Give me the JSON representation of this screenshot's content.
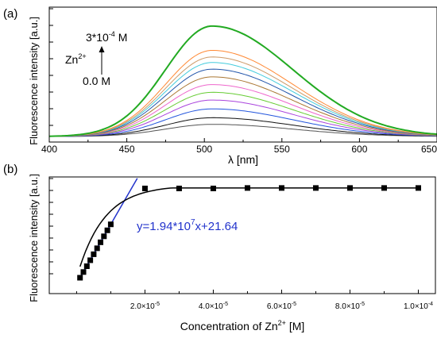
{
  "chart_data": [
    {
      "panel_label": "(a)",
      "type": "line",
      "xlabel": "λ [nm]",
      "ylabel": "Fluorescence intensity [a.u.]",
      "xlim": [
        400,
        650
      ],
      "x_ticks": [
        "400",
        "450",
        "500",
        "550",
        "600",
        "650"
      ],
      "annotations": {
        "top": "3*10",
        "top_exp": "-4",
        "top_unit": " M",
        "middle_base": "Zn",
        "middle_sup": "2+",
        "bottom": "0.0 M"
      },
      "peak_nm": 505,
      "sigma_left_nm": 30,
      "sigma_right_nm": 52,
      "baseline_relative": [
        0.0,
        0.09,
        0.16,
        0.23,
        0.3,
        0.36,
        0.42,
        0.48,
        0.54,
        0.6,
        0.66,
        1.0
      ],
      "series_colors": [
        "#555555",
        "#111111",
        "#2255dd",
        "#aa44dd",
        "#66cc33",
        "#ee66cc",
        "#aa7733",
        "#2255aa",
        "#44ccdd",
        "#cc9966",
        "#ff8833",
        "#22aa22"
      ],
      "curve_peak_relative": [
        0.11,
        0.17,
        0.25,
        0.33,
        0.4,
        0.47,
        0.54,
        0.61,
        0.67,
        0.72,
        0.78,
        1.0
      ]
    },
    {
      "panel_label": "(b)",
      "type": "scatter",
      "xlabel_base": "Concentration of Zn",
      "xlabel_sup": "2+",
      "xlabel_tail": " [M]",
      "ylabel": "Fluorescence intensity [a.u.]",
      "xlim": [
        -8e-06,
        0.000105
      ],
      "x_ticks": [
        {
          "value": 2e-05,
          "mant": "2.0×10",
          "exp": "-5"
        },
        {
          "value": 4e-05,
          "mant": "4.0×10",
          "exp": "-5"
        },
        {
          "value": 6e-05,
          "mant": "6.0×10",
          "exp": "-5"
        },
        {
          "value": 8e-05,
          "mant": "8.0×10",
          "exp": "-5"
        },
        {
          "value": 0.0001,
          "mant": "1.0×10",
          "exp": "-4"
        }
      ],
      "x": [
        1e-06,
        2e-06,
        3e-06,
        4e-06,
        5e-06,
        6e-06,
        7e-06,
        8e-06,
        9e-06,
        1e-05,
        2e-05,
        3e-05,
        4e-05,
        5e-05,
        6e-05,
        7e-05,
        8e-05,
        9e-05,
        0.0001
      ],
      "y_relative": [
        0.0,
        0.062,
        0.125,
        0.19,
        0.255,
        0.32,
        0.385,
        0.45,
        0.515,
        0.58,
        0.97,
        0.97,
        0.97,
        0.975,
        0.975,
        0.975,
        0.975,
        0.975,
        0.975
      ],
      "fit_label": {
        "base": "y=1.94*10",
        "sup": "7",
        "tail": "x+21.64",
        "color": "#2233cc"
      },
      "fit_color": "#2233cc"
    }
  ]
}
